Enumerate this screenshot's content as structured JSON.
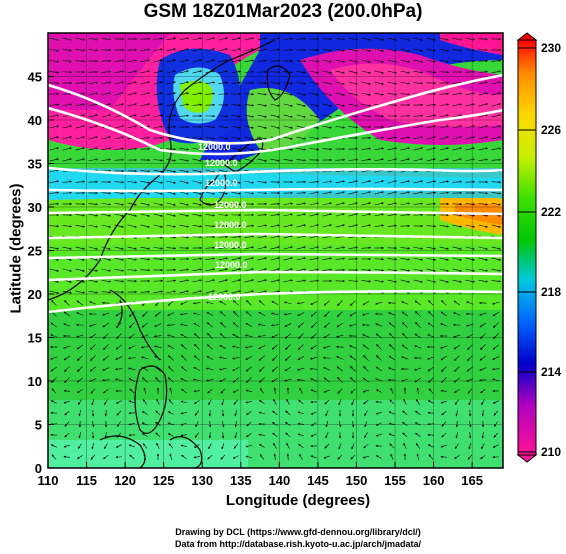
{
  "title": "GSM 18Z01Mar2023 (200.0hPa)",
  "axes": {
    "xlabel": "Longitude (degrees)",
    "ylabel": "Latitude  (degrees)",
    "x_ticks": [
      "110",
      "115",
      "120",
      "125",
      "130",
      "135",
      "140",
      "145",
      "150",
      "155",
      "160",
      "165"
    ],
    "y_ticks": [
      "0",
      "5",
      "10",
      "15",
      "20",
      "25",
      "30",
      "35",
      "40",
      "45"
    ]
  },
  "colorbar": {
    "labels": [
      "230",
      "226",
      "222",
      "218",
      "214",
      "210"
    ],
    "colors": [
      "#ff0000",
      "#ff8c00",
      "#ffd700",
      "#90ee00",
      "#00c800",
      "#00c8c8",
      "#0064ff",
      "#0000c8",
      "#c800c8",
      "#ff1493"
    ]
  },
  "contour_labels": [
    "12000.0",
    "12000.0",
    "12000.0",
    "12000.0",
    "12000.0",
    "12000.0",
    "12000.0",
    "12000.0"
  ],
  "credits": {
    "line1": "Drawing by DCL (https://www.gfd-dennou.org/library/dcl/)",
    "line2": "Data from http://database.rish.kyoto-u.ac.jp/arch/jmadata/"
  },
  "chart_data": {
    "type": "heatmap",
    "title": "GSM 18Z01Mar2023 (200.0hPa)",
    "xlabel": "Longitude (degrees)",
    "ylabel": "Latitude  (degrees)",
    "xlim": [
      110,
      169
    ],
    "ylim": [
      0,
      50
    ],
    "colorbar_range": [
      210,
      230
    ],
    "colorbar_ticks": [
      210,
      214,
      218,
      222,
      226,
      230
    ],
    "overlays": [
      "wind vectors",
      "streamlines",
      "geopotential height contours",
      "coastlines"
    ]
  }
}
